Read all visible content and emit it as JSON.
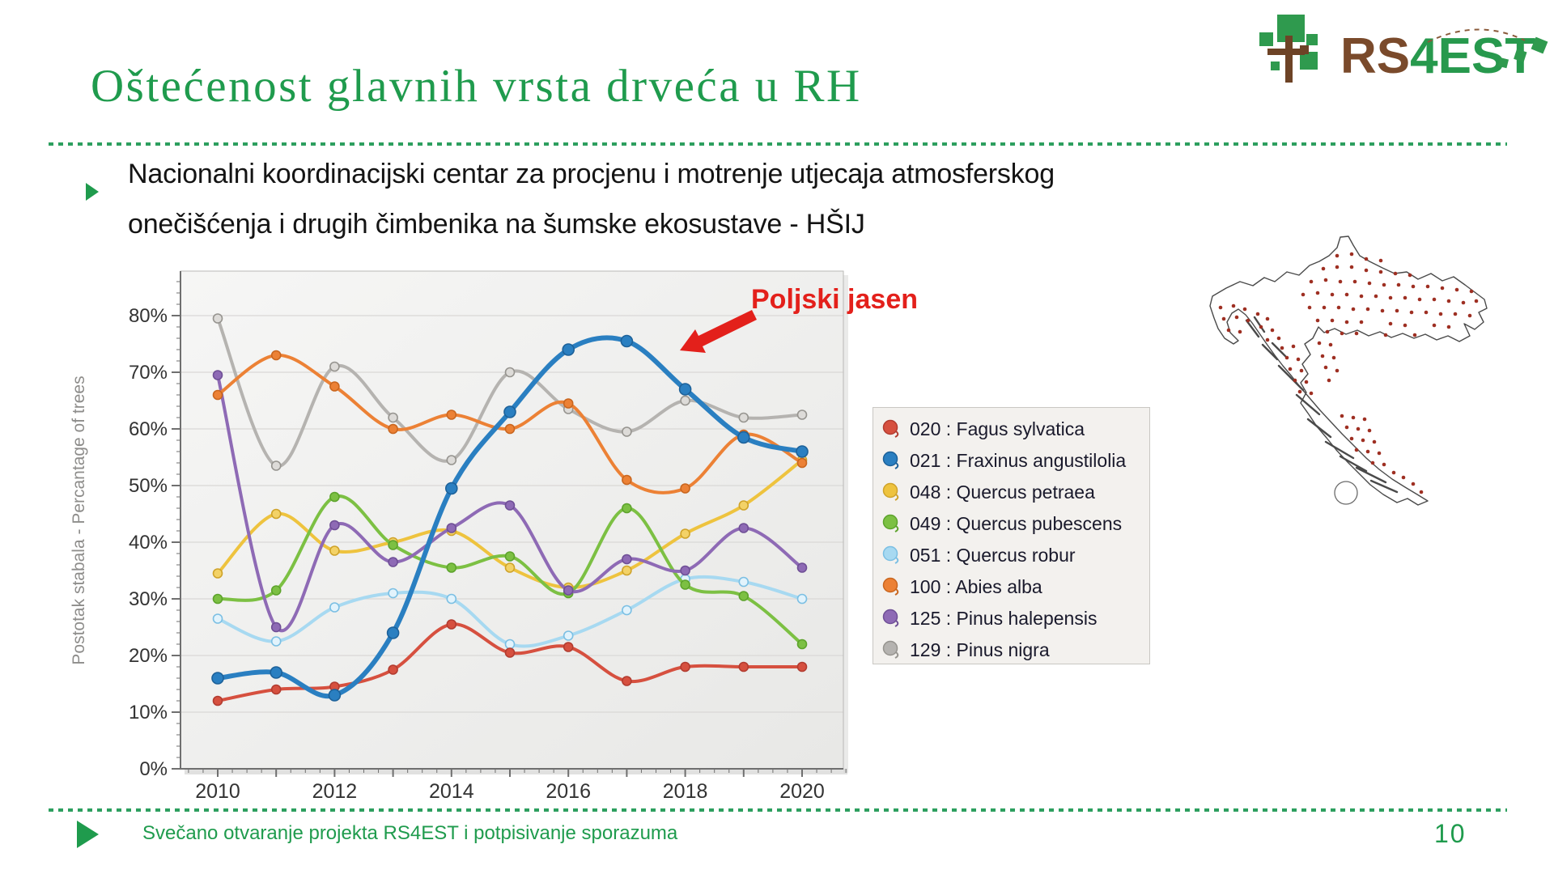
{
  "slide": {
    "title": "Oštećenost glavnih vrsta drveća u RH",
    "bullet": {
      "lines": [
        "Nacionalni koordinacijski centar za procjenu i motrenje utjecaja atmosferskog",
        "onečišćenja i drugih čimbenika na šumske ekosustave - HŠIJ"
      ]
    },
    "footer": {
      "text": "Svečano otvaranje projekta RS4EST i potpisivanje sporazuma",
      "page_number": "10"
    },
    "logo": {
      "part1": "RS",
      "part2": "4EST"
    },
    "colors": {
      "accent_green": "#1f9b4d",
      "logo_brown": "#7a4a2b",
      "annotation_red": "#e3201b"
    }
  },
  "chart_data": {
    "type": "line",
    "x": [
      2010,
      2011,
      2012,
      2013,
      2014,
      2015,
      2016,
      2017,
      2018,
      2019,
      2020
    ],
    "x_tick_labels": [
      "2010",
      "2012",
      "2014",
      "2016",
      "2018",
      "2020"
    ],
    "y_tick_labels": [
      "0%",
      "10%",
      "20%",
      "30%",
      "40%",
      "50%",
      "60%",
      "70%",
      "80%"
    ],
    "ylabel": "Postotak stabala - Percantage of trees",
    "ylim": [
      0,
      88
    ],
    "grid": true,
    "legend_position": "right",
    "annotation": {
      "text": "Poljski jasen",
      "color": "#e3201b",
      "points_to": "peak of series 021 Fraxinus around 2016-2017"
    },
    "series": [
      {
        "label": "020 : Fagus sylvatica",
        "color": "#d6503f",
        "marker_stroke": "#b23c30",
        "marker_fill": "#d6503f",
        "line_width": 4,
        "marker_r": 5.5,
        "z": 7,
        "values": [
          12,
          14,
          14.5,
          17.5,
          25.5,
          20.5,
          21.5,
          15.5,
          18,
          18,
          18
        ]
      },
      {
        "label": "021 : Fraxinus angustilolia",
        "color": "#2a7fc1",
        "marker_stroke": "#1d6199",
        "marker_fill": "#2a7fc1",
        "line_width": 6,
        "marker_r": 7,
        "z": 8,
        "values": [
          16,
          17,
          13,
          24,
          49.5,
          63,
          74,
          75.5,
          67,
          58.5,
          56
        ]
      },
      {
        "label": "048 : Quercus petraea",
        "color": "#eec33e",
        "marker_stroke": "#cfa32a",
        "marker_fill": "#f3d267",
        "line_width": 4,
        "marker_r": 5.5,
        "z": 3,
        "values": [
          34.5,
          45,
          38.5,
          40,
          42,
          35.5,
          32,
          35,
          41.5,
          46.5,
          54.5
        ]
      },
      {
        "label": "049 : Quercus pubescens",
        "color": "#7cc043",
        "marker_stroke": "#5da32c",
        "marker_fill": "#7cc043",
        "line_width": 4,
        "marker_r": 5.5,
        "z": 4,
        "values": [
          30,
          31.5,
          48,
          39.5,
          35.5,
          37.5,
          31,
          46,
          32.5,
          30.5,
          22
        ]
      },
      {
        "label": "051 : Quercus robur",
        "color": "#a7d9f1",
        "marker_stroke": "#7bbfe3",
        "marker_fill": "#e2f3fc",
        "line_width": 4,
        "marker_r": 5.5,
        "z": 1,
        "values": [
          26.5,
          22.5,
          28.5,
          31,
          30,
          22,
          23.5,
          28,
          33.5,
          33,
          30
        ]
      },
      {
        "label": "100 : Abies alba",
        "color": "#ec8135",
        "marker_stroke": "#c9661f",
        "marker_fill": "#ec8135",
        "line_width": 4,
        "marker_r": 5.5,
        "z": 6,
        "values": [
          66,
          73,
          67.5,
          60,
          62.5,
          60,
          64.5,
          51,
          49.5,
          59,
          54
        ]
      },
      {
        "label": "125 : Pinus halepensis",
        "color": "#8e6ab5",
        "marker_stroke": "#6f4f96",
        "marker_fill": "#8e6ab5",
        "line_width": 4,
        "marker_r": 5.5,
        "z": 5,
        "values": [
          69.5,
          25,
          43,
          36.5,
          42.5,
          46.5,
          31.5,
          37,
          35,
          42.5,
          35.5
        ]
      },
      {
        "label": "129 : Pinus nigra",
        "color": "#b5b3b0",
        "marker_stroke": "#96948f",
        "marker_fill": "#dddbd8",
        "line_width": 4,
        "marker_r": 5.5,
        "z": 2,
        "values": [
          79.5,
          53.5,
          71,
          62,
          54.5,
          70,
          63.5,
          59.5,
          65,
          62,
          62.5
        ]
      }
    ]
  },
  "map": {
    "region": "Croatia monitoring plots",
    "dot_color": "#9e2f22",
    "dots": [
      [
        172,
        48
      ],
      [
        190,
        46
      ],
      [
        208,
        52
      ],
      [
        226,
        54
      ],
      [
        155,
        64
      ],
      [
        172,
        62
      ],
      [
        190,
        62
      ],
      [
        208,
        66
      ],
      [
        226,
        68
      ],
      [
        244,
        70
      ],
      [
        262,
        72
      ],
      [
        140,
        80
      ],
      [
        158,
        78
      ],
      [
        176,
        80
      ],
      [
        194,
        80
      ],
      [
        212,
        82
      ],
      [
        230,
        84
      ],
      [
        248,
        84
      ],
      [
        266,
        86
      ],
      [
        284,
        86
      ],
      [
        302,
        88
      ],
      [
        320,
        90
      ],
      [
        338,
        92
      ],
      [
        130,
        96
      ],
      [
        148,
        94
      ],
      [
        166,
        96
      ],
      [
        184,
        96
      ],
      [
        202,
        98
      ],
      [
        220,
        98
      ],
      [
        238,
        100
      ],
      [
        256,
        100
      ],
      [
        274,
        102
      ],
      [
        292,
        102
      ],
      [
        310,
        104
      ],
      [
        328,
        106
      ],
      [
        344,
        104
      ],
      [
        138,
        112
      ],
      [
        156,
        112
      ],
      [
        174,
        112
      ],
      [
        192,
        114
      ],
      [
        210,
        114
      ],
      [
        228,
        116
      ],
      [
        246,
        116
      ],
      [
        264,
        118
      ],
      [
        282,
        118
      ],
      [
        300,
        120
      ],
      [
        318,
        120
      ],
      [
        336,
        122
      ],
      [
        148,
        128
      ],
      [
        166,
        128
      ],
      [
        184,
        130
      ],
      [
        202,
        130
      ],
      [
        238,
        132
      ],
      [
        256,
        134
      ],
      [
        292,
        134
      ],
      [
        310,
        136
      ],
      [
        160,
        142
      ],
      [
        178,
        144
      ],
      [
        196,
        144
      ],
      [
        232,
        146
      ],
      [
        268,
        146
      ],
      [
        28,
        112
      ],
      [
        44,
        110
      ],
      [
        58,
        114
      ],
      [
        32,
        126
      ],
      [
        48,
        124
      ],
      [
        62,
        128
      ],
      [
        38,
        140
      ],
      [
        52,
        142
      ],
      [
        74,
        120
      ],
      [
        86,
        126
      ],
      [
        78,
        136
      ],
      [
        92,
        140
      ],
      [
        86,
        152
      ],
      [
        100,
        150
      ],
      [
        104,
        162
      ],
      [
        118,
        160
      ],
      [
        110,
        174
      ],
      [
        124,
        176
      ],
      [
        114,
        188
      ],
      [
        128,
        190
      ],
      [
        120,
        202
      ],
      [
        134,
        204
      ],
      [
        126,
        216
      ],
      [
        140,
        218
      ],
      [
        150,
        156
      ],
      [
        164,
        158
      ],
      [
        154,
        172
      ],
      [
        168,
        174
      ],
      [
        158,
        186
      ],
      [
        172,
        190
      ],
      [
        162,
        202
      ],
      [
        178,
        246
      ],
      [
        192,
        248
      ],
      [
        206,
        250
      ],
      [
        184,
        260
      ],
      [
        198,
        262
      ],
      [
        212,
        264
      ],
      [
        190,
        274
      ],
      [
        204,
        276
      ],
      [
        218,
        278
      ],
      [
        196,
        288
      ],
      [
        210,
        290
      ],
      [
        224,
        292
      ],
      [
        216,
        304
      ],
      [
        230,
        306
      ],
      [
        242,
        316
      ],
      [
        254,
        322
      ],
      [
        266,
        330
      ],
      [
        276,
        340
      ]
    ]
  }
}
